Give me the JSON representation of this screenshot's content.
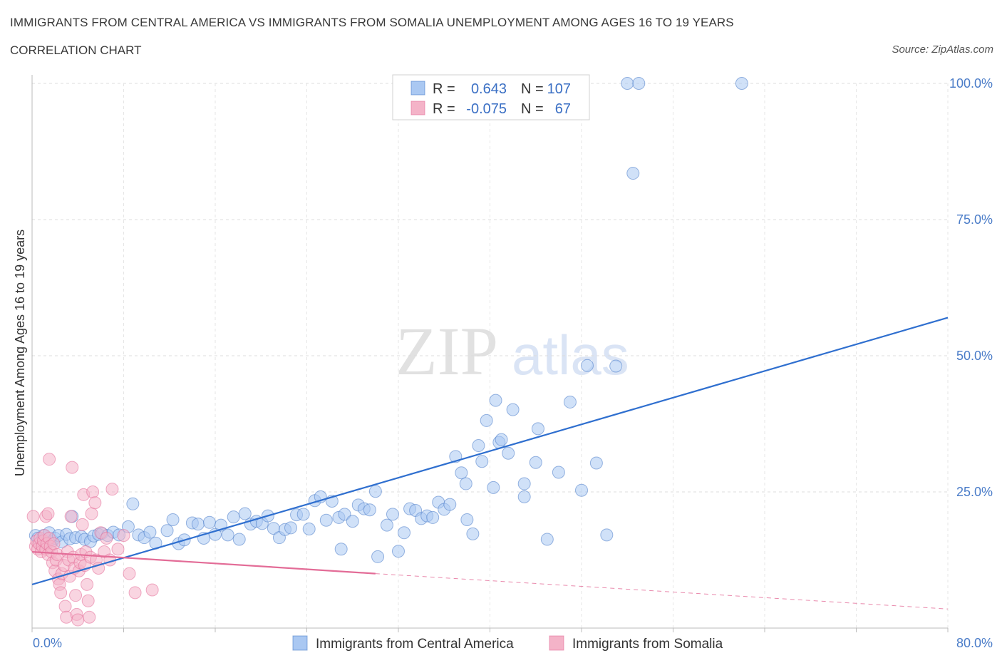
{
  "header": {
    "title": "IMMIGRANTS FROM CENTRAL AMERICA VS IMMIGRANTS FROM SOMALIA UNEMPLOYMENT AMONG AGES 16 TO 19 YEARS",
    "subtitle": "CORRELATION CHART",
    "source": "Source: ZipAtlas.com"
  },
  "watermark": {
    "part1": "ZIP",
    "part2": "atlas"
  },
  "legend_box": {
    "rows": [
      {
        "r_label": "R =",
        "r_value": "0.643",
        "n_label": "N =",
        "n_value": "107",
        "color": "#9ec0f0"
      },
      {
        "r_label": "R =",
        "r_value": "-0.075",
        "n_label": "N =",
        "n_value": "67",
        "color": "#f4b3c8"
      }
    ]
  },
  "bottom_legend": [
    {
      "label": "Immigrants from Central America",
      "color": "#9ec0f0"
    },
    {
      "label": "Immigrants from Somalia",
      "color": "#f4b3c8"
    }
  ],
  "chart_data": {
    "type": "scatter",
    "xlabel": "",
    "ylabel": "Unemployment Among Ages 16 to 19 years",
    "xlim": [
      0,
      80
    ],
    "ylim": [
      0,
      100
    ],
    "x_tick_labels": [
      "0.0%",
      "80.0%"
    ],
    "y_ticks": [
      {
        "value": 25,
        "label": "25.0%"
      },
      {
        "value": 50,
        "label": "50.0%"
      },
      {
        "value": 75,
        "label": "75.0%"
      },
      {
        "value": 100,
        "label": "100.0%"
      }
    ],
    "grid": true,
    "series": [
      {
        "name": "Immigrants from Central America",
        "color": "#4a7cc8",
        "fill": "#aac8f2",
        "trend": {
          "x0": 0,
          "y0": 8,
          "x1": 80,
          "y1": 57
        },
        "points": [
          [
            0.3,
            17
          ],
          [
            0.5,
            16.5
          ],
          [
            0.8,
            16
          ],
          [
            1,
            17
          ],
          [
            1.2,
            15.5
          ],
          [
            1.5,
            17.5
          ],
          [
            1.8,
            16
          ],
          [
            2,
            16.5
          ],
          [
            2.3,
            17
          ],
          [
            2.6,
            15.8
          ],
          [
            3,
            17.2
          ],
          [
            3.3,
            16.4
          ],
          [
            3.5,
            20.5
          ],
          [
            3.8,
            16.6
          ],
          [
            4.3,
            16.8
          ],
          [
            4.6,
            16.3
          ],
          [
            5.1,
            15.9
          ],
          [
            5.4,
            16.9
          ],
          [
            5.8,
            17.2
          ],
          [
            6.1,
            17.4
          ],
          [
            6.6,
            17
          ],
          [
            7.1,
            17.6
          ],
          [
            7.6,
            17.1
          ],
          [
            8.8,
            22.8
          ],
          [
            8.4,
            18.6
          ],
          [
            9.3,
            17.1
          ],
          [
            9.8,
            16.6
          ],
          [
            10.3,
            17.6
          ],
          [
            10.8,
            15.6
          ],
          [
            11.8,
            17.9
          ],
          [
            12.3,
            19.9
          ],
          [
            12.8,
            15.5
          ],
          [
            13.3,
            16.2
          ],
          [
            14,
            19.3
          ],
          [
            14.5,
            19.1
          ],
          [
            15,
            16.5
          ],
          [
            15.5,
            19.4
          ],
          [
            16,
            17.2
          ],
          [
            16.5,
            18.9
          ],
          [
            17.1,
            17.1
          ],
          [
            17.6,
            20.4
          ],
          [
            18.1,
            16.3
          ],
          [
            18.6,
            21
          ],
          [
            19.1,
            19.1
          ],
          [
            19.6,
            19.6
          ],
          [
            20.1,
            19.2
          ],
          [
            20.6,
            20.6
          ],
          [
            21.1,
            18.3
          ],
          [
            21.6,
            16.6
          ],
          [
            22.1,
            18.1
          ],
          [
            22.6,
            18.4
          ],
          [
            23.1,
            20.8
          ],
          [
            23.7,
            20.9
          ],
          [
            24.2,
            18.2
          ],
          [
            24.7,
            23.4
          ],
          [
            25.2,
            24.1
          ],
          [
            25.7,
            19.8
          ],
          [
            26.2,
            23.3
          ],
          [
            27,
            14.5
          ],
          [
            26.8,
            20.3
          ],
          [
            27.3,
            20.9
          ],
          [
            28,
            19.6
          ],
          [
            28.5,
            22.6
          ],
          [
            29,
            21.9
          ],
          [
            29.5,
            21.7
          ],
          [
            30,
            25.1
          ],
          [
            30.2,
            13.1
          ],
          [
            31,
            18.9
          ],
          [
            31.5,
            20.9
          ],
          [
            32,
            14.1
          ],
          [
            32.5,
            17.5
          ],
          [
            33,
            21.9
          ],
          [
            33.5,
            21.6
          ],
          [
            34,
            20.1
          ],
          [
            34.5,
            20.6
          ],
          [
            35,
            20.3
          ],
          [
            35.5,
            23.1
          ],
          [
            36,
            21.8
          ],
          [
            36.5,
            22.7
          ],
          [
            37,
            31.5
          ],
          [
            37.5,
            28.5
          ],
          [
            37.9,
            26.5
          ],
          [
            38,
            19.9
          ],
          [
            38.5,
            17.3
          ],
          [
            39,
            33.5
          ],
          [
            39.3,
            30.6
          ],
          [
            39.7,
            38.1
          ],
          [
            40.3,
            25.8
          ],
          [
            40.8,
            34.1
          ],
          [
            40.5,
            41.8
          ],
          [
            41,
            34.6
          ],
          [
            41.6,
            32.1
          ],
          [
            42,
            40.1
          ],
          [
            43,
            26.5
          ],
          [
            43,
            24.1
          ],
          [
            44,
            30.4
          ],
          [
            44.2,
            36.6
          ],
          [
            45,
            16.3
          ],
          [
            46,
            28.6
          ],
          [
            47,
            41.5
          ],
          [
            48,
            25.3
          ],
          [
            48.5,
            48.2
          ],
          [
            49.3,
            30.3
          ],
          [
            50.2,
            17.1
          ],
          [
            51,
            48.1
          ],
          [
            52,
            100
          ],
          [
            53,
            100
          ],
          [
            52.5,
            83.5
          ],
          [
            62,
            100
          ]
        ]
      },
      {
        "name": "Immigrants from Somalia",
        "color": "#e36c97",
        "fill": "#f4b3c8",
        "trend": {
          "x0": 0,
          "y0": 14,
          "x1": 30,
          "y1": 10,
          "dash_x1": 80,
          "dash_y1": 3.5
        },
        "points": [
          [
            0.1,
            20.5
          ],
          [
            0.3,
            15
          ],
          [
            0.4,
            16
          ],
          [
            0.5,
            14.5
          ],
          [
            0.6,
            15.5
          ],
          [
            0.7,
            16.5
          ],
          [
            0.8,
            14
          ],
          [
            0.9,
            15
          ],
          [
            1,
            16
          ],
          [
            1.1,
            17
          ],
          [
            1.2,
            14.5
          ],
          [
            1.3,
            15.5
          ],
          [
            1.4,
            13.5
          ],
          [
            1.5,
            16.5
          ],
          [
            1.6,
            15
          ],
          [
            1.7,
            14
          ],
          [
            1.8,
            12
          ],
          [
            1.9,
            15.5
          ],
          [
            1.2,
            20.5
          ],
          [
            1.4,
            21
          ],
          [
            1.5,
            31
          ],
          [
            2,
            10.5
          ],
          [
            2.1,
            12.5
          ],
          [
            2.2,
            13.5
          ],
          [
            2.3,
            9
          ],
          [
            2.4,
            8
          ],
          [
            2.5,
            6.5
          ],
          [
            2.6,
            10
          ],
          [
            2.8,
            11.5
          ],
          [
            2.9,
            4
          ],
          [
            3,
            2
          ],
          [
            3.1,
            14
          ],
          [
            3.2,
            12.5
          ],
          [
            3.3,
            9.5
          ],
          [
            3.4,
            20.5
          ],
          [
            3.5,
            29.5
          ],
          [
            3.6,
            13
          ],
          [
            3.7,
            11
          ],
          [
            3.8,
            6
          ],
          [
            3.9,
            2.5
          ],
          [
            4,
            1.5
          ],
          [
            4.1,
            10.5
          ],
          [
            4.2,
            12
          ],
          [
            4.3,
            13.5
          ],
          [
            4.4,
            19
          ],
          [
            4.5,
            24.5
          ],
          [
            4.6,
            11.5
          ],
          [
            4.7,
            14
          ],
          [
            4.8,
            8
          ],
          [
            4.9,
            5
          ],
          [
            5,
            2
          ],
          [
            5.1,
            13
          ],
          [
            5.2,
            21
          ],
          [
            5.3,
            25
          ],
          [
            5.5,
            23
          ],
          [
            5.6,
            12.5
          ],
          [
            5.8,
            11
          ],
          [
            6,
            17.5
          ],
          [
            6.3,
            14
          ],
          [
            6.5,
            16.5
          ],
          [
            6.8,
            12.5
          ],
          [
            7,
            25.5
          ],
          [
            7.5,
            14.5
          ],
          [
            8,
            17
          ],
          [
            8.5,
            10
          ],
          [
            9,
            6.5
          ],
          [
            10.5,
            7
          ]
        ]
      }
    ]
  }
}
